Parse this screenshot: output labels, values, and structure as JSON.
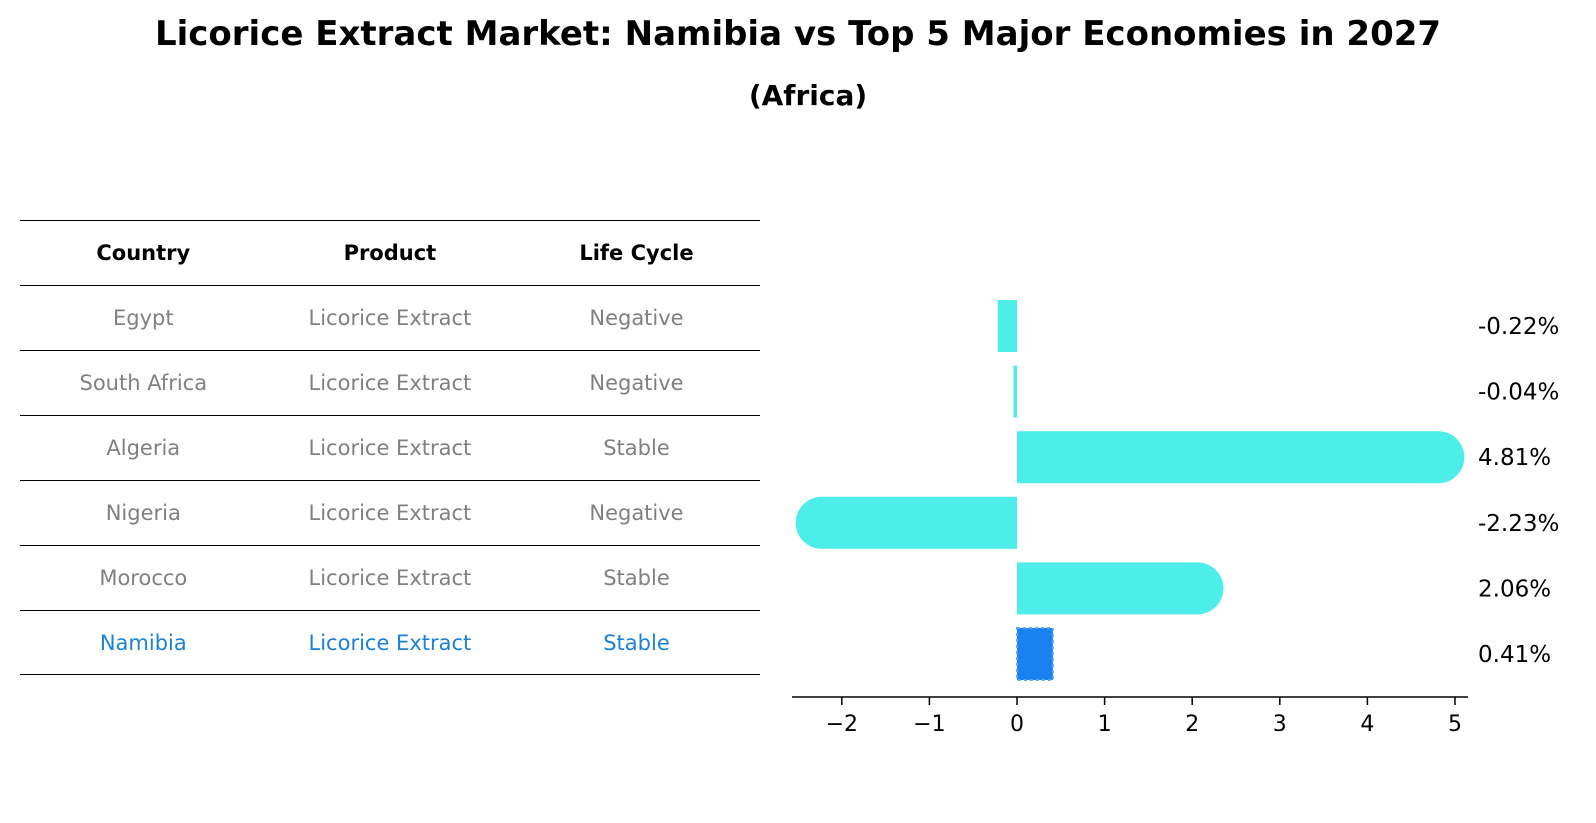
{
  "title": "Licorice Extract Market: Namibia vs Top 5 Major Economies in 2027",
  "subtitle": "(Africa)",
  "table": {
    "headers": [
      "Country",
      "Product",
      "Life Cycle"
    ],
    "rows": [
      [
        "Egypt",
        "Licorice Extract",
        "Negative"
      ],
      [
        "South Africa",
        "Licorice Extract",
        "Negative"
      ],
      [
        "Algeria",
        "Licorice Extract",
        "Stable"
      ],
      [
        "Nigeria",
        "Licorice Extract",
        "Negative"
      ],
      [
        "Morocco",
        "Licorice Extract",
        "Stable"
      ],
      [
        "Namibia",
        "Licorice Extract",
        "Stable"
      ]
    ],
    "highlight_row": 5
  },
  "colors": {
    "bar": "#4deeea",
    "highlight": "#1a82f0",
    "highlight_text": "#1a82d8",
    "muted_text": "#808080"
  },
  "chart_data": {
    "type": "bar",
    "orientation": "horizontal",
    "categories": [
      "Egypt",
      "South Africa",
      "Algeria",
      "Nigeria",
      "Morocco",
      "Namibia"
    ],
    "values": [
      -0.22,
      -0.04,
      4.81,
      -2.23,
      2.06,
      0.41
    ],
    "value_labels": [
      "-0.22%",
      "-0.04%",
      "4.81%",
      "-2.23%",
      "2.06%",
      "0.41%"
    ],
    "xlim": [
      -2.6,
      5.15
    ],
    "xticks": [
      -2,
      -1,
      0,
      1,
      2,
      3,
      4,
      5
    ],
    "xtick_labels": [
      "−2",
      "−1",
      "0",
      "1",
      "2",
      "3",
      "4",
      "5"
    ],
    "highlight_index": 5,
    "grid": false
  }
}
